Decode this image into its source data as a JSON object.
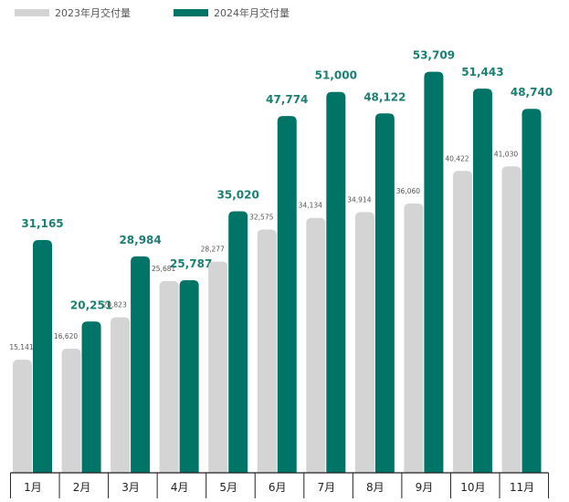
{
  "chart_data": {
    "type": "bar",
    "categories": [
      "1月",
      "2月",
      "3月",
      "4月",
      "5月",
      "6月",
      "7月",
      "8月",
      "9月",
      "10月",
      "11月"
    ],
    "series": [
      {
        "name": "2023年月交付量",
        "values": [
          15141,
          16620,
          20823,
          25681,
          28277,
          32575,
          34134,
          34914,
          36060,
          40422,
          41030
        ],
        "labels": [
          "15,141",
          "16,620",
          "20,823",
          "25,681",
          "28,277",
          "32,575",
          "34,134",
          "34,914",
          "36,060",
          "40,422",
          "41,030"
        ],
        "color": "#d4d4d4"
      },
      {
        "name": "2024年月交付量",
        "values": [
          31165,
          20251,
          28984,
          25787,
          35020,
          47774,
          51000,
          48122,
          53709,
          51443,
          48740
        ],
        "labels": [
          "31,165",
          "20,251",
          "28,984",
          "25,787",
          "35,020",
          "47,774",
          "51,000",
          "48,122",
          "53,709",
          "51,443",
          "48,740"
        ],
        "color": "#007466"
      }
    ],
    "title": "",
    "xlabel": "",
    "ylabel": "",
    "ylim": [
      0,
      55000
    ],
    "grid": false,
    "legend": "top-left",
    "label_color_2024": "#1a7f72",
    "axis_color": "#222222"
  }
}
